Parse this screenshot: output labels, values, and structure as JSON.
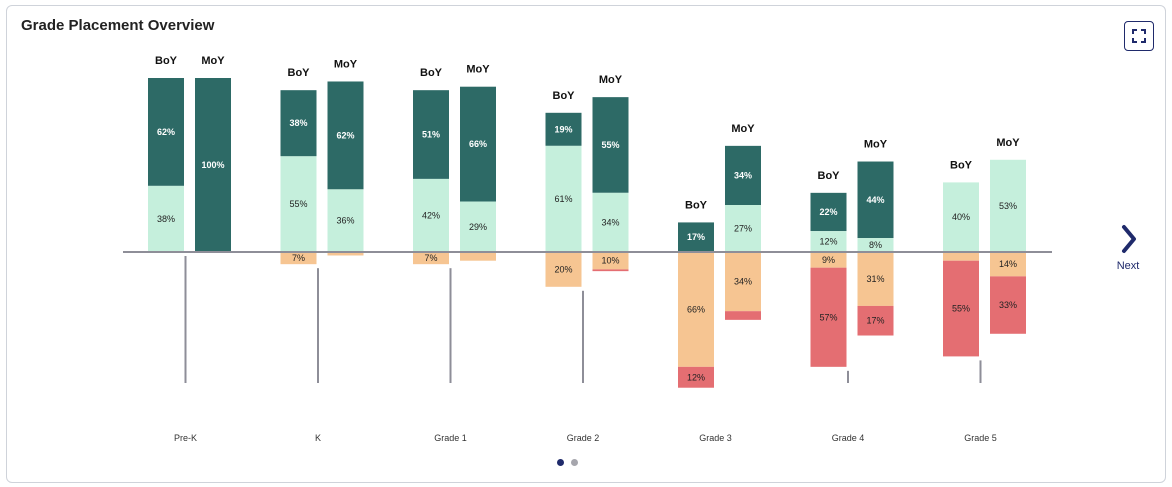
{
  "title": "Grade Placement Overview",
  "next_label": "Next",
  "icons": {
    "expand": "expand-icon",
    "next": "chevron-right-icon"
  },
  "colors": {
    "on_grade_or_above": "#2d6a66",
    "near_grade": "#c5efdc",
    "one_below": "#f6c592",
    "two_or_more_below": "#e46e72",
    "axis": "#8e8e98",
    "accent": "#1f2a6b",
    "dot_active": "#1f2a6b",
    "dot_inactive": "#a6a6ad"
  },
  "pagination": {
    "pages": 2,
    "active": 0
  },
  "chart_data": {
    "type": "bar",
    "stacked": "diverging",
    "categories": [
      "Pre-K",
      "K",
      "Grade 1",
      "Grade 2",
      "Grade 3",
      "Grade 4",
      "Grade 5"
    ],
    "column_labels": [
      "BoY",
      "MoY"
    ],
    "groups": [
      {
        "category": "Pre-K",
        "columns": [
          {
            "label": "BoY",
            "segments": [
              62,
              38,
              0,
              0
            ]
          },
          {
            "label": "MoY",
            "segments": [
              100,
              0,
              0,
              0
            ]
          }
        ]
      },
      {
        "category": "K",
        "columns": [
          {
            "label": "BoY",
            "segments": [
              38,
              55,
              7,
              0
            ]
          },
          {
            "label": "MoY",
            "segments": [
              62,
              36,
              2,
              0
            ]
          }
        ]
      },
      {
        "category": "Grade 1",
        "columns": [
          {
            "label": "BoY",
            "segments": [
              51,
              42,
              7,
              0
            ]
          },
          {
            "label": "MoY",
            "segments": [
              66,
              29,
              5,
              0
            ]
          }
        ]
      },
      {
        "category": "Grade 2",
        "columns": [
          {
            "label": "BoY",
            "segments": [
              19,
              61,
              20,
              0
            ]
          },
          {
            "label": "MoY",
            "segments": [
              55,
              34,
              10,
              1
            ]
          }
        ]
      },
      {
        "category": "Grade 3",
        "columns": [
          {
            "label": "BoY",
            "segments": [
              17,
              0,
              66,
              12
            ]
          },
          {
            "label": "MoY",
            "segments": [
              34,
              27,
              34,
              5
            ]
          }
        ]
      },
      {
        "category": "Grade 4",
        "columns": [
          {
            "label": "BoY",
            "segments": [
              22,
              12,
              9,
              57
            ]
          },
          {
            "label": "MoY",
            "segments": [
              44,
              8,
              31,
              17
            ]
          }
        ]
      },
      {
        "category": "Grade 5",
        "columns": [
          {
            "label": "BoY",
            "segments": [
              0,
              40,
              5,
              55
            ]
          },
          {
            "label": "MoY",
            "segments": [
              0,
              53,
              14,
              33
            ]
          }
        ]
      }
    ],
    "label_threshold": 7,
    "grid": false,
    "legend": "none"
  }
}
